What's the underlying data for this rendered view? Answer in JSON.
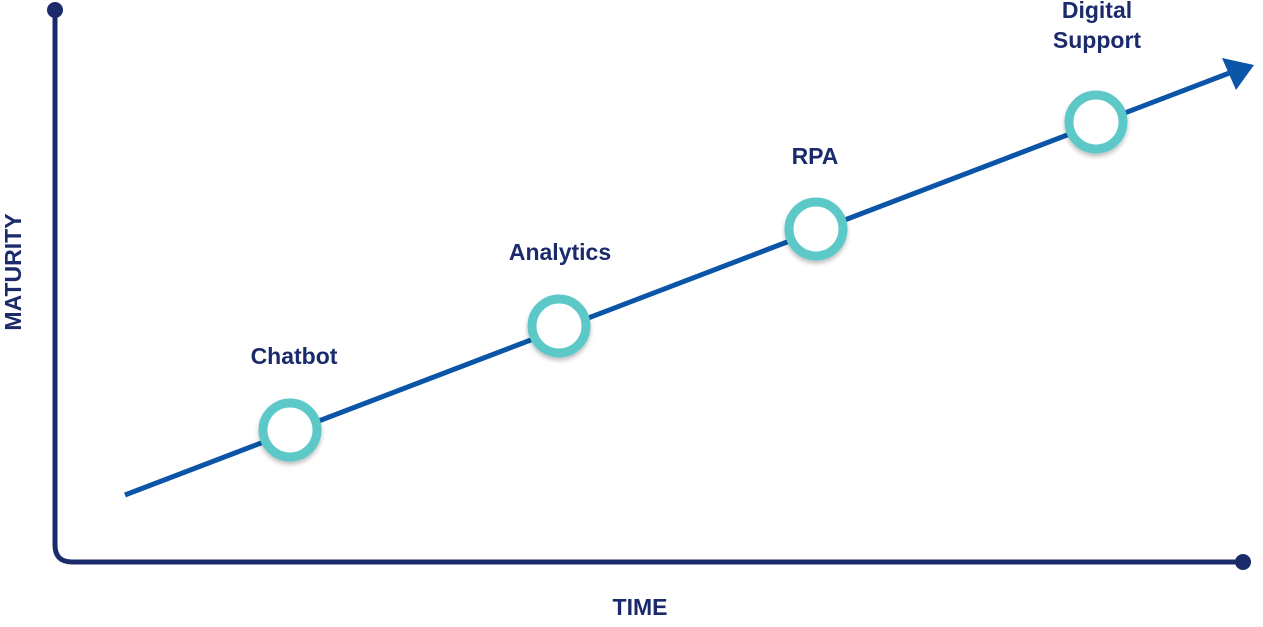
{
  "axes": {
    "y_label": "MATURITY",
    "x_label": "TIME"
  },
  "nodes": [
    {
      "lines": [
        "Chatbot"
      ]
    },
    {
      "lines": [
        "Analytics"
      ]
    },
    {
      "lines": [
        "RPA"
      ]
    },
    {
      "lines": [
        "Digital",
        "Support"
      ]
    }
  ]
}
